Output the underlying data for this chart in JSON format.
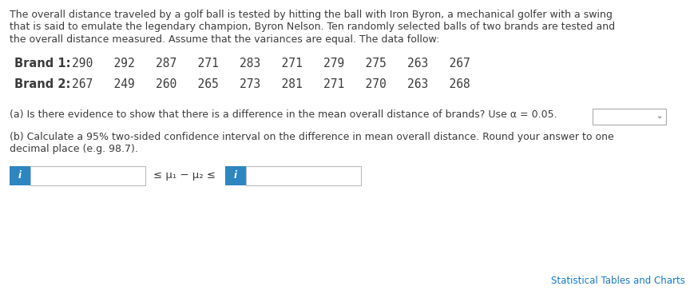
{
  "bg_color": "#ffffff",
  "text_color": "#3c3c3c",
  "para_line1": "The overall distance traveled by a golf ball is tested by hitting the ball with Iron Byron, a mechanical golfer with a swing",
  "para_line2": "that is said to emulate the legendary champion, Byron Nelson. Ten randomly selected balls of two brands are tested and",
  "para_line3": "the overall distance measured. Assume that the variances are equal. The data follow:",
  "brand1_label": "Brand 1:",
  "brand1_values": "290   292   287   271   283   271   279   275   263   267",
  "brand2_label": "Brand 2:",
  "brand2_values": "267   249   260   265   273   281   271   270   263   268",
  "part_a_text": "(a) Is there evidence to show that there is a difference in the mean overall distance of brands? Use α = 0.05.",
  "part_b_line1": "(b) Calculate a 95% two-sided confidence interval on the difference in mean overall distance. Round your answer to one",
  "part_b_line2": "decimal place (e.g. 98.7).",
  "inequality_text": "≤ μ₁ − μ₂ ≤",
  "footer_text": "Statistical Tables and Charts",
  "footer_color": "#1a7abf",
  "box_color": "#2e86c1",
  "font_size": 9.0,
  "brand_font_size": 10.5
}
